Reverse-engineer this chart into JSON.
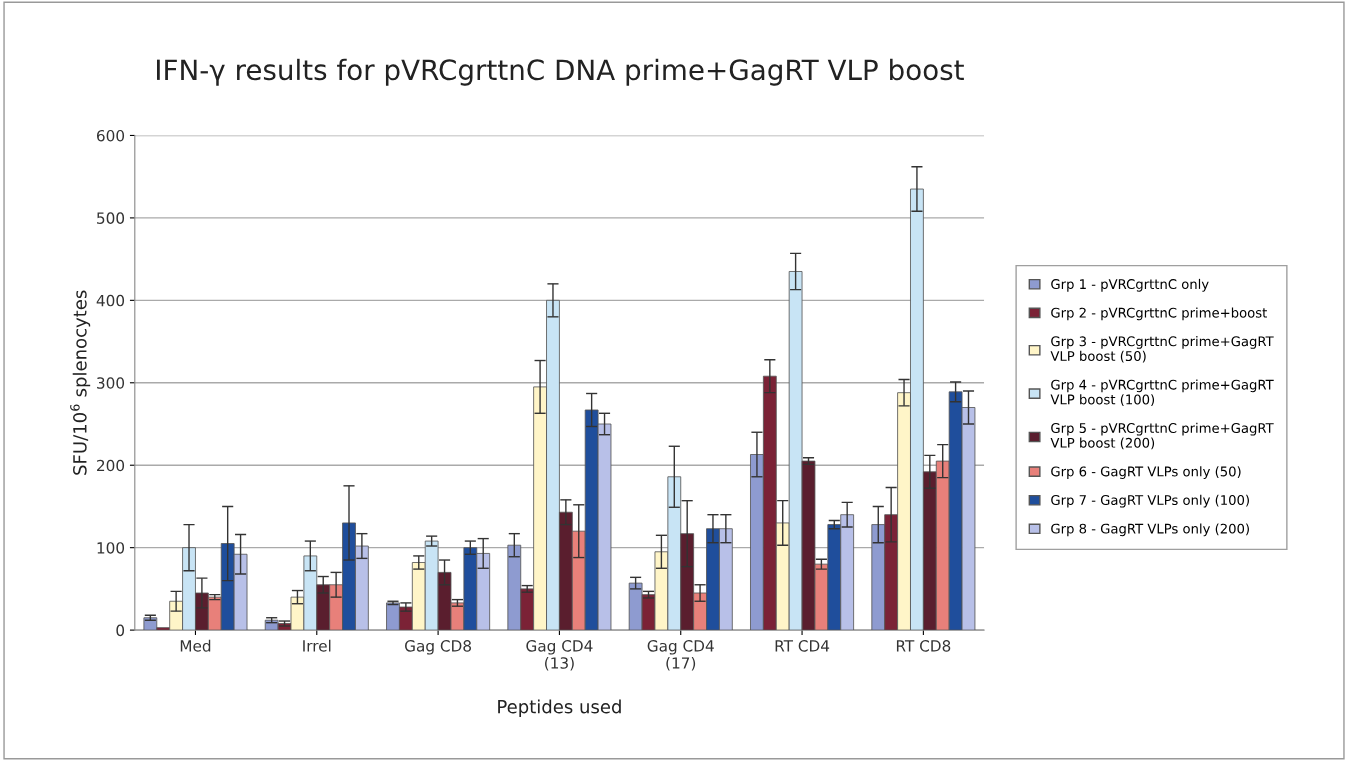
{
  "chart_data": {
    "type": "bar",
    "title": "IFN-γ results for pVRCgrttnC DNA prime+GagRT VLP boost",
    "xlabel": "Peptides used",
    "ylabel": "SFU/10$^{6}$ splenocytes",
    "categories": [
      "Med",
      "Irrel",
      "Gag CD8",
      "Gag CD4\n(13)",
      "Gag CD4\n(17)",
      "RT CD4",
      "RT CD8"
    ],
    "ylim": [
      0,
      600
    ],
    "yticks": [
      0,
      100,
      200,
      300,
      400,
      500,
      600
    ],
    "grid": "y",
    "legend": "right",
    "series": [
      {
        "name": "Grp 1 - pVRCgrttnC only",
        "color": "#8e9bd0",
        "values": [
          15,
          12,
          33,
          103,
          57,
          213,
          128
        ],
        "errors": [
          3,
          3,
          2,
          14,
          7,
          27,
          22
        ]
      },
      {
        "name": "Grp 2 - pVRCgrttnC prime+boost",
        "color": "#7b2236",
        "values": [
          3,
          8,
          28,
          50,
          43,
          308,
          140
        ],
        "errors": [
          null,
          3,
          5,
          4,
          4,
          20,
          33
        ]
      },
      {
        "name": "Grp 3 - pVRCgrttnC prime+GagRT VLP boost (50)",
        "color": "#fff5c8",
        "values": [
          35,
          40,
          82,
          295,
          95,
          130,
          288
        ],
        "errors": [
          12,
          8,
          8,
          32,
          20,
          27,
          16
        ]
      },
      {
        "name": "Grp 4 - pVRCgrttnC prime+GagRT VLP boost (100)",
        "color": "#c8e4f5",
        "values": [
          100,
          90,
          108,
          400,
          186,
          435,
          535
        ],
        "errors": [
          28,
          18,
          6,
          20,
          37,
          22,
          27
        ]
      },
      {
        "name": "Grp 5 - pVRCgrttnC prime+GagRT VLP boost (200)",
        "color": "#5a1e2e",
        "values": [
          45,
          55,
          70,
          143,
          117,
          205,
          192
        ],
        "errors": [
          18,
          10,
          15,
          15,
          40,
          4,
          20
        ]
      },
      {
        "name": "Grp 6 - GagRT VLPs only (50)",
        "color": "#e8807a",
        "values": [
          40,
          55,
          33,
          120,
          45,
          80,
          205
        ],
        "errors": [
          3,
          15,
          4,
          32,
          10,
          6,
          20
        ]
      },
      {
        "name": "Grp 7 - GagRT VLPs only (100)",
        "color": "#1f4e9c",
        "values": [
          105,
          130,
          100,
          267,
          123,
          128,
          289
        ],
        "errors": [
          45,
          45,
          8,
          20,
          17,
          5,
          12
        ]
      },
      {
        "name": "Grp 8 - GagRT VLPs only (200)",
        "color": "#b8c0e8",
        "values": [
          92,
          102,
          93,
          250,
          123,
          140,
          270
        ],
        "errors": [
          24,
          15,
          18,
          13,
          17,
          15,
          20
        ]
      }
    ]
  }
}
